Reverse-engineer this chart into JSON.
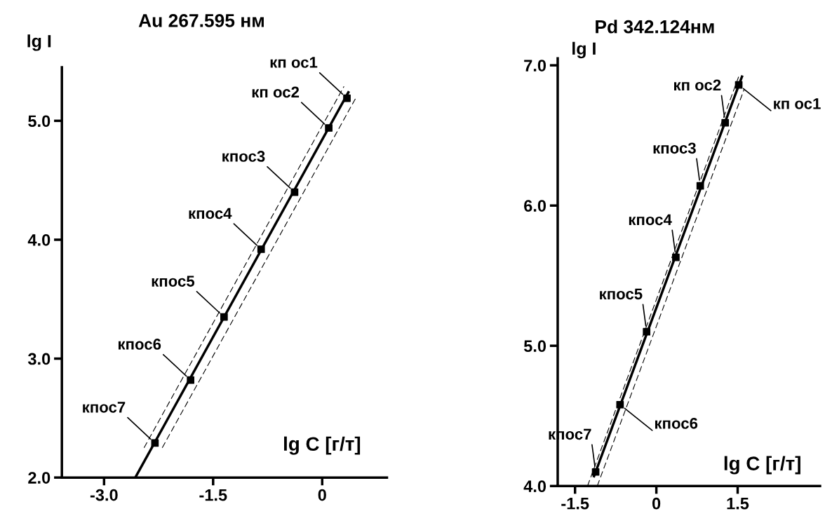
{
  "chart_data": [
    {
      "type": "scatter",
      "title": "Au 267.595 нм",
      "xlabel": "lg C [г/т]",
      "ylabel": "lg I",
      "grid": false,
      "legend": false,
      "xlim": [
        -3.58,
        0.89
      ],
      "ylim": [
        2.0,
        5.45
      ],
      "xticks": [
        {
          "value": -3,
          "label": "-3.0"
        },
        -1.5,
        0
      ],
      "yticks": [
        {
          "value": 2,
          "label": "2.0"
        },
        {
          "value": 3,
          "label": "3.0"
        },
        {
          "value": 4,
          "label": "4.0"
        },
        {
          "value": 5,
          "label": "5.0"
        }
      ],
      "series": [
        {
          "type": "line",
          "marker": "none",
          "line_style": "solid",
          "color": "#000000",
          "x": [
            -2.57,
            0.36
          ],
          "values": [
            2.0,
            5.24
          ]
        },
        {
          "type": "line",
          "marker": "none",
          "line_style": "dashed",
          "color": "#000000",
          "x": [
            -2.45,
            0.3
          ],
          "values": [
            2.25,
            5.29
          ]
        },
        {
          "type": "line",
          "marker": "none",
          "line_style": "dashed",
          "color": "#000000",
          "x": [
            -2.2,
            0.46
          ],
          "values": [
            2.25,
            5.19
          ]
        },
        {
          "marker": "square",
          "color": "#000000",
          "x": [
            0.34,
            0.09,
            -0.38,
            -0.84,
            -1.35,
            -1.81,
            -2.3
          ],
          "values": [
            5.19,
            4.94,
            4.4,
            3.92,
            3.35,
            2.82,
            2.29
          ]
        }
      ],
      "annotations": [
        {
          "text": "кп ос1",
          "x": 0.34,
          "y": 5.19
        },
        {
          "text": "кп ос2",
          "x": 0.09,
          "y": 4.94
        },
        {
          "text": "кпос3",
          "x": -0.38,
          "y": 4.4
        },
        {
          "text": "кпос4",
          "x": -0.84,
          "y": 3.92
        },
        {
          "text": "кпос5",
          "x": -1.35,
          "y": 3.35
        },
        {
          "text": "кпос6",
          "x": -1.81,
          "y": 2.82
        },
        {
          "text": "кпос7",
          "x": -2.3,
          "y": 2.29
        }
      ]
    },
    {
      "type": "scatter",
      "title": "Pd 342.124нм",
      "xlabel": "lg C [г/т]",
      "ylabel": "lg I",
      "grid": false,
      "legend": false,
      "xlim": [
        -1.82,
        3.02
      ],
      "ylim": [
        4.0,
        7.05
      ],
      "xticks": [
        -1.5,
        0,
        1.5
      ],
      "yticks": [
        {
          "value": 4,
          "label": "4.0"
        },
        {
          "value": 5,
          "label": "5.0"
        },
        {
          "value": 6,
          "label": "6.0"
        },
        {
          "value": 7,
          "label": "7.0"
        }
      ],
      "series": [
        {
          "type": "line",
          "marker": "none",
          "line_style": "solid",
          "color": "#000000",
          "x": [
            -1.15,
            1.58
          ],
          "values": [
            4.07,
            6.92
          ]
        },
        {
          "type": "line",
          "marker": "none",
          "line_style": "dashed",
          "color": "#000000",
          "x": [
            -1.27,
            1.52
          ],
          "values": [
            4.0,
            6.92
          ]
        },
        {
          "type": "line",
          "marker": "none",
          "line_style": "dashed",
          "color": "#000000",
          "x": [
            -1.09,
            1.62
          ],
          "values": [
            4.0,
            6.83
          ]
        },
        {
          "marker": "square",
          "color": "#000000",
          "x": [
            1.52,
            1.27,
            0.81,
            0.36,
            -0.18,
            -0.67,
            -1.12
          ],
          "values": [
            6.86,
            6.59,
            6.14,
            5.63,
            5.1,
            4.58,
            4.1
          ]
        }
      ],
      "annotations": [
        {
          "text": "кп ос1",
          "x": 1.52,
          "y": 6.86
        },
        {
          "text": "кп ос2",
          "x": 1.27,
          "y": 6.59
        },
        {
          "text": "кпос3",
          "x": 0.81,
          "y": 6.14
        },
        {
          "text": "кпос4",
          "x": 0.36,
          "y": 5.63
        },
        {
          "text": "кпос5",
          "x": -0.18,
          "y": 5.1
        },
        {
          "text": "кпос6",
          "x": -0.67,
          "y": 4.58
        },
        {
          "text": "кпос7",
          "x": -1.12,
          "y": 4.1
        }
      ]
    }
  ]
}
